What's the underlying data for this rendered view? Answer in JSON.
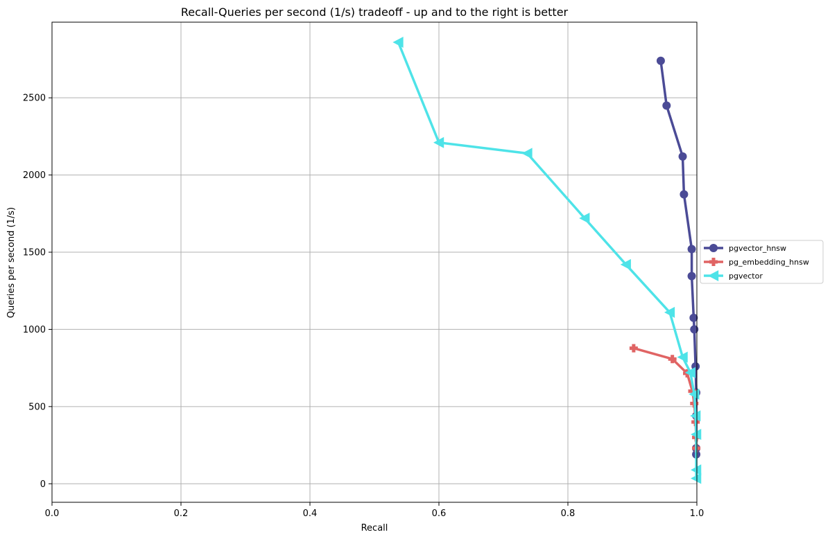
{
  "chart_data": {
    "type": "line",
    "title": "Recall-Queries per second (1/s) tradeoff - up and to the right is better",
    "xlabel": "Recall",
    "ylabel": "Queries per second (1/s)",
    "xlim": [
      0.0,
      1.0
    ],
    "ylim": [
      -120,
      2990
    ],
    "xticks": [
      0.0,
      0.2,
      0.4,
      0.6,
      0.8,
      1.0
    ],
    "xtick_labels": [
      "0.0",
      "0.2",
      "0.4",
      "0.6",
      "0.8",
      "1.0"
    ],
    "yticks": [
      0,
      500,
      1000,
      1500,
      2000,
      2500
    ],
    "ytick_labels": [
      "0",
      "500",
      "1000",
      "1500",
      "2000",
      "2500"
    ],
    "grid": true,
    "legend_position": "right, outside plot area",
    "series": [
      {
        "name": "pgvector_hnsw",
        "color": "#4b4b96",
        "marker": "circle",
        "x": [
          0.944,
          0.953,
          0.978,
          0.98,
          0.992,
          0.992,
          0.995,
          0.996,
          0.998,
          0.999,
          0.999,
          0.999,
          0.999
        ],
        "y": [
          2740,
          2450,
          2120,
          1875,
          1520,
          1345,
          1075,
          1000,
          760,
          590,
          440,
          230,
          190
        ]
      },
      {
        "name": "pg_embedding_hnsw",
        "color": "#e06464",
        "marker": "plus",
        "x": [
          0.902,
          0.962,
          0.985,
          0.993,
          0.996,
          0.998,
          0.999,
          0.999
        ],
        "y": [
          878,
          808,
          715,
          600,
          520,
          400,
          300,
          230
        ]
      },
      {
        "name": "pgvector",
        "color": "#4ee3e8",
        "marker": "triangle-left",
        "x": [
          0.537,
          0.6,
          0.737,
          0.826,
          0.89,
          0.958,
          0.978,
          0.99,
          0.996,
          0.998,
          0.999,
          0.999,
          0.999
        ],
        "y": [
          2860,
          2210,
          2140,
          1720,
          1420,
          1110,
          820,
          720,
          580,
          440,
          320,
          90,
          35
        ]
      }
    ]
  }
}
